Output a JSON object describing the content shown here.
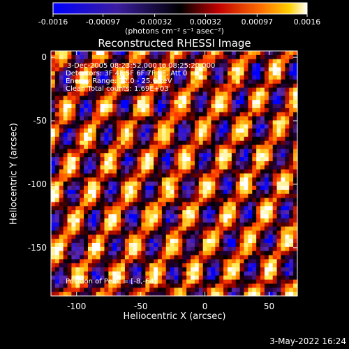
{
  "chart_data": {
    "type": "heatmap",
    "title": "Reconstructed RHESSI Image",
    "xlabel": "Heliocentric X (arcsec)",
    "ylabel": "Heliocentric Y (arcsec)",
    "xlim": [
      -120,
      72
    ],
    "ylim": [
      -188,
      5
    ],
    "xticks": [
      -100,
      -50,
      0,
      50
    ],
    "yticks": [
      0,
      -50,
      -100,
      -150
    ],
    "grid": false,
    "colorbar": {
      "position": "top",
      "min": -0.0016,
      "max": 0.0016,
      "tick_values": [
        -0.0016,
        -0.00097,
        -0.00032,
        0.00032,
        0.00097,
        0.0016
      ],
      "tick_labels": [
        "-0.0016",
        "-0.00097",
        "-0.00032",
        "0.00032",
        "0.00097",
        "0.0016"
      ],
      "units_label": "(photons cm⁻² s⁻¹ asec⁻²)"
    },
    "annotations": {
      "time_range": "3-Dec-2005 08:23:52.000 to 08:25:20.000",
      "detectors": "Detectors: 3F 4F 5F 6F 7F 8F, Att 0",
      "energy": "Energy Range: 12.0 - 25.0 keV",
      "clean": "Clean     Total counts: 1.69E+03",
      "peak": "Position of Peak = [-8,-64]"
    },
    "peak_position": [
      -8,
      -64
    ]
  },
  "footer": {
    "timestamp": "3-May-2022 16:24"
  }
}
